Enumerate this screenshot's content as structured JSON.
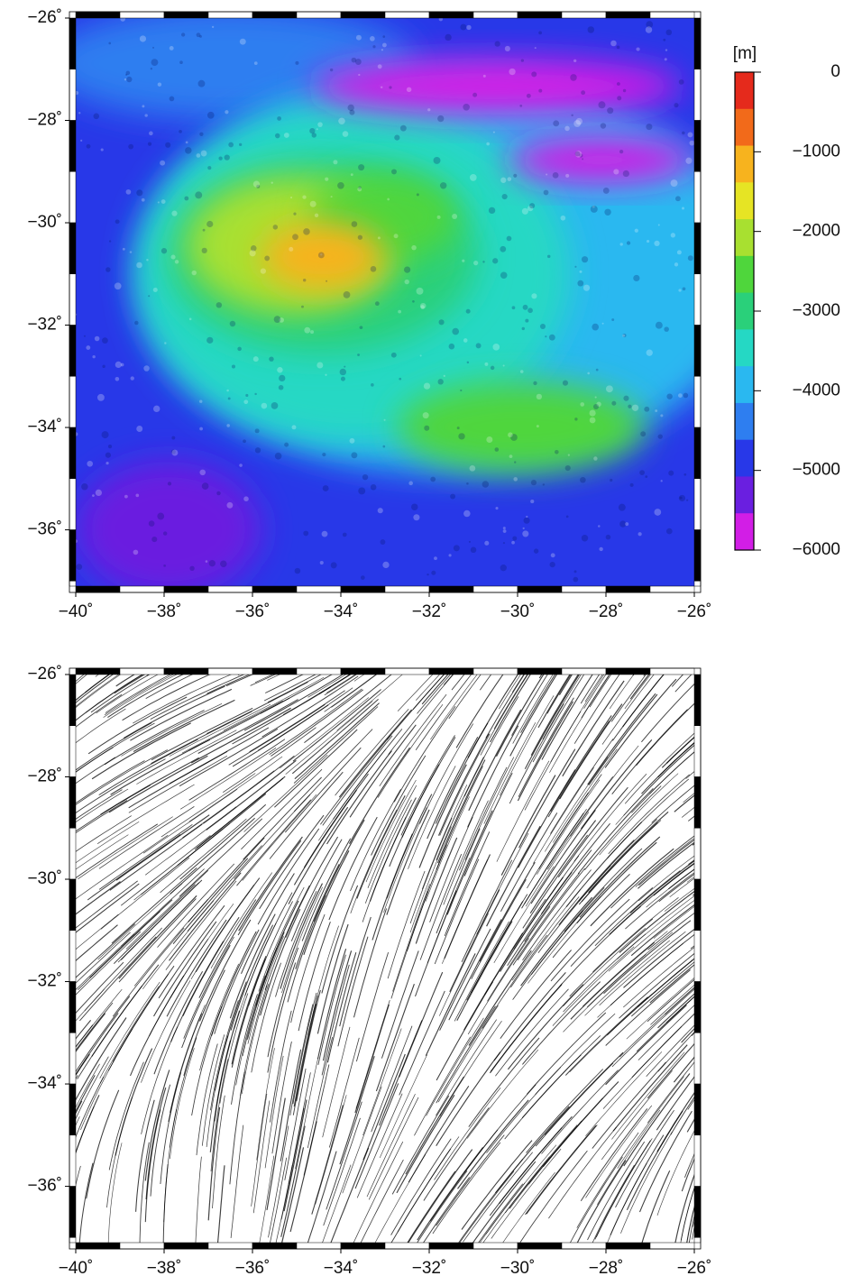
{
  "maps": [
    {
      "xlim": [
        -40,
        -26
      ],
      "ylim": [
        -37.1,
        -26
      ],
      "xticks": [
        {
          "value": -40,
          "label": "−40˚"
        },
        {
          "value": -38,
          "label": "−38˚"
        },
        {
          "value": -36,
          "label": "−36˚"
        },
        {
          "value": -34,
          "label": "−34˚"
        },
        {
          "value": -32,
          "label": "−32˚"
        },
        {
          "value": -30,
          "label": "−30˚"
        },
        {
          "value": -28,
          "label": "−28˚"
        },
        {
          "value": -26,
          "label": "−26˚"
        }
      ],
      "yticks": [
        {
          "value": -26,
          "label": "−26˚"
        },
        {
          "value": -28,
          "label": "−28˚"
        },
        {
          "value": -30,
          "label": "−30˚"
        },
        {
          "value": -32,
          "label": "−32˚"
        },
        {
          "value": -34,
          "label": "−34˚"
        },
        {
          "value": -36,
          "label": "−36˚"
        }
      ]
    },
    {
      "xlim": [
        -40,
        -26
      ],
      "ylim": [
        -37.1,
        -26
      ],
      "xticks": [
        {
          "value": -40,
          "label": "−40˚"
        },
        {
          "value": -38,
          "label": "−38˚"
        },
        {
          "value": -36,
          "label": "−36˚"
        },
        {
          "value": -34,
          "label": "−34˚"
        },
        {
          "value": -32,
          "label": "−32˚"
        },
        {
          "value": -30,
          "label": "−30˚"
        },
        {
          "value": -28,
          "label": "−28˚"
        },
        {
          "value": -26,
          "label": "−26˚"
        }
      ],
      "yticks": [
        {
          "value": -26,
          "label": "−26˚"
        },
        {
          "value": -28,
          "label": "−28˚"
        },
        {
          "value": -30,
          "label": "−30˚"
        },
        {
          "value": -32,
          "label": "−32˚"
        },
        {
          "value": -34,
          "label": "−34˚"
        },
        {
          "value": -36,
          "label": "−36˚"
        }
      ]
    }
  ],
  "colorbar": {
    "label": "[m]",
    "lim": [
      -6000,
      0
    ],
    "ticks": [
      {
        "value": 0,
        "label": "0"
      },
      {
        "value": -1000,
        "label": "−1000"
      },
      {
        "value": -2000,
        "label": "−2000"
      },
      {
        "value": -3000,
        "label": "−3000"
      },
      {
        "value": -4000,
        "label": "−4000"
      },
      {
        "value": -5000,
        "label": "−5000"
      },
      {
        "value": -6000,
        "label": "−6000"
      }
    ],
    "colors": [
      "#e52a1c",
      "#f26a1a",
      "#f7b31e",
      "#e6e424",
      "#a8e030",
      "#4fd63c",
      "#2ad07a",
      "#25d8c4",
      "#2ab8f0",
      "#2e7ef0",
      "#2838e8",
      "#6a1fe0",
      "#d21ee6"
    ]
  }
}
